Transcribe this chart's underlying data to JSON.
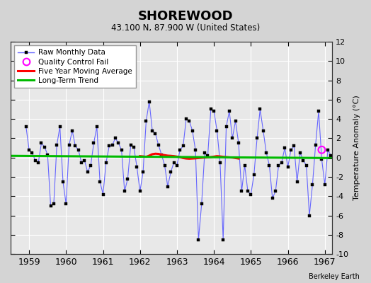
{
  "title": "SHOREWOOD",
  "subtitle": "43.100 N, 87.900 W (United States)",
  "ylabel": "Temperature Anomaly (°C)",
  "credit": "Berkeley Earth",
  "legend_raw": "Raw Monthly Data",
  "legend_qc": "Quality Control Fail",
  "legend_ma": "Five Year Moving Average",
  "legend_trend": "Long-Term Trend",
  "xlim": [
    1958.5,
    1967.2
  ],
  "ylim": [
    -10,
    12
  ],
  "yticks": [
    -10,
    -8,
    -6,
    -4,
    -2,
    0,
    2,
    4,
    6,
    8,
    10,
    12
  ],
  "xticks": [
    1959,
    1960,
    1961,
    1962,
    1963,
    1964,
    1965,
    1966,
    1967
  ],
  "background_color": "#d4d4d4",
  "plot_bg_color": "#e8e8e8",
  "grid_color": "#ffffff",
  "line_color": "#6666ff",
  "marker_color": "#000000",
  "moving_avg_color": "#ff0000",
  "trend_color": "#00bb00",
  "qc_fail_color": "#ff00ff",
  "raw_monthly_times": [
    1958.917,
    1959.0,
    1959.083,
    1959.167,
    1959.25,
    1959.333,
    1959.417,
    1959.5,
    1959.583,
    1959.667,
    1959.75,
    1959.833,
    1959.917,
    1960.0,
    1960.083,
    1960.167,
    1960.25,
    1960.333,
    1960.417,
    1960.5,
    1960.583,
    1960.667,
    1960.75,
    1960.833,
    1960.917,
    1961.0,
    1961.083,
    1961.167,
    1961.25,
    1961.333,
    1961.417,
    1961.5,
    1961.583,
    1961.667,
    1961.75,
    1961.833,
    1961.917,
    1962.0,
    1962.083,
    1962.167,
    1962.25,
    1962.333,
    1962.417,
    1962.5,
    1962.583,
    1962.667,
    1962.75,
    1962.833,
    1962.917,
    1963.0,
    1963.083,
    1963.167,
    1963.25,
    1963.333,
    1963.417,
    1963.5,
    1963.583,
    1963.667,
    1963.75,
    1963.833,
    1963.917,
    1964.0,
    1964.083,
    1964.167,
    1964.25,
    1964.333,
    1964.417,
    1964.5,
    1964.583,
    1964.667,
    1964.75,
    1964.833,
    1964.917,
    1965.0,
    1965.083,
    1965.167,
    1965.25,
    1965.333,
    1965.417,
    1965.5,
    1965.583,
    1965.667,
    1965.75,
    1965.833,
    1965.917,
    1966.0,
    1966.083,
    1966.167,
    1966.25,
    1966.333,
    1966.417,
    1966.5,
    1966.583,
    1966.667,
    1966.75,
    1966.833,
    1966.917,
    1967.0,
    1967.083,
    1967.167
  ],
  "raw_monthly_data": [
    3.2,
    0.8,
    0.5,
    -0.3,
    -0.5,
    1.5,
    1.1,
    0.3,
    -5.0,
    -4.8,
    1.3,
    3.2,
    -2.5,
    -4.8,
    1.3,
    2.8,
    1.2,
    0.8,
    -0.5,
    -0.3,
    -1.5,
    -0.8,
    1.5,
    3.2,
    -2.5,
    -3.8,
    -0.5,
    1.2,
    1.3,
    2.0,
    1.5,
    0.8,
    -3.5,
    -2.2,
    1.3,
    1.1,
    -1.0,
    -3.5,
    -1.5,
    3.8,
    5.8,
    2.8,
    2.5,
    1.3,
    0.3,
    -0.8,
    -3.0,
    -1.5,
    -0.5,
    -0.8,
    0.8,
    1.2,
    4.0,
    3.8,
    2.8,
    0.8,
    -8.5,
    -4.8,
    0.5,
    0.2,
    5.0,
    4.8,
    2.8,
    -0.5,
    -8.5,
    3.2,
    4.8,
    2.0,
    3.8,
    1.5,
    -3.5,
    -0.8,
    -3.5,
    -3.8,
    -1.8,
    2.0,
    5.0,
    2.8,
    0.5,
    -0.8,
    -4.2,
    -3.5,
    -0.8,
    -0.5,
    1.0,
    -1.0,
    0.8,
    1.2,
    -2.5,
    0.5,
    -0.3,
    -0.8,
    -6.0,
    -2.8,
    1.3,
    4.8,
    -0.2,
    -2.8,
    0.8,
    0.2
  ],
  "moving_avg_times": [
    1962.0,
    1962.083,
    1962.167,
    1962.25,
    1962.333,
    1962.417,
    1962.5,
    1962.583,
    1962.667,
    1962.75,
    1962.833,
    1962.917,
    1963.0,
    1963.083,
    1963.167,
    1963.25,
    1963.333,
    1963.417,
    1963.5,
    1963.583,
    1963.667,
    1963.75,
    1963.833,
    1963.917,
    1964.0,
    1964.083,
    1964.167,
    1964.25,
    1964.333,
    1964.417,
    1964.5,
    1964.583,
    1964.667
  ],
  "moving_avg_values": [
    0.15,
    0.12,
    0.08,
    0.2,
    0.35,
    0.4,
    0.38,
    0.3,
    0.25,
    0.2,
    0.18,
    0.15,
    0.1,
    0.05,
    -0.05,
    -0.1,
    -0.12,
    -0.1,
    -0.08,
    -0.05,
    -0.02,
    0.0,
    0.02,
    0.05,
    0.1,
    0.15,
    0.12,
    0.08,
    0.05,
    0.02,
    0.0,
    -0.05,
    -0.1
  ],
  "trend_x": [
    1958.5,
    1967.2
  ],
  "trend_y": [
    0.18,
    -0.05
  ],
  "qc_fail_x": [
    1966.917
  ],
  "qc_fail_y": [
    0.8
  ]
}
